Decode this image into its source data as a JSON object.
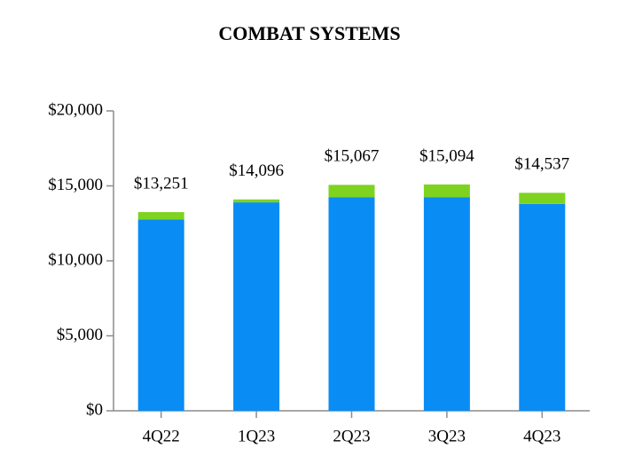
{
  "chart_data": {
    "type": "stacked_bar",
    "title": "COMBAT SYSTEMS",
    "categories": [
      "4Q22",
      "1Q23",
      "2Q23",
      "3Q23",
      "4Q23"
    ],
    "series": [
      {
        "color": "#0a8cf5",
        "values": [
          12750,
          13900,
          14250,
          14250,
          13800
        ]
      },
      {
        "color": "#7ed321",
        "values": [
          501,
          196,
          817,
          844,
          737
        ]
      }
    ],
    "totals": [
      13251,
      14096,
      15067,
      15094,
      14537
    ],
    "total_labels": [
      "$13,251",
      "$14,096",
      "$15,067",
      "$15,094",
      "$14,537"
    ],
    "ylim": [
      0,
      20000
    ],
    "yticks": [
      {
        "value": 0,
        "label": "$0"
      },
      {
        "value": 5000,
        "label": "$5,000"
      },
      {
        "value": 10000,
        "label": "$10,000"
      },
      {
        "value": 15000,
        "label": "$15,000"
      },
      {
        "value": 20000,
        "label": "$20,000"
      }
    ]
  }
}
